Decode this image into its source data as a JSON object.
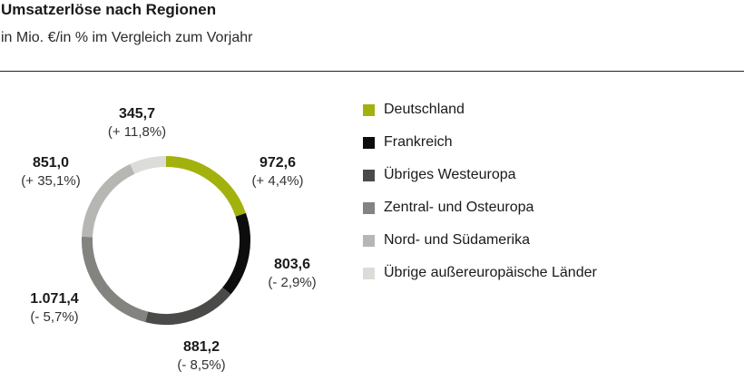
{
  "header": {
    "title": "Umsatzerlöse nach Regionen",
    "subtitle": "in Mio. €/in % im Vergleich zum Vorjahr"
  },
  "colors": {
    "deutschland": "#a3b10d",
    "frankreich": "#0d0d0d",
    "westeuropa": "#4a4a48",
    "osteuropa": "#838380",
    "amerika": "#b6b6b3",
    "ausser": "#dcdcd8"
  },
  "chart_data": {
    "type": "pie",
    "style": "donut",
    "categories": [
      "Deutschland",
      "Frankreich",
      "Übriges Westeuropa",
      "Zentral- und Osteuropa",
      "Nord- und Südamerika",
      "Übrige außereuropäische Länder"
    ],
    "values": [
      972.6,
      803.6,
      881.2,
      1071.4,
      851.0,
      345.7
    ],
    "value_labels": [
      "972,6",
      "803,6",
      "881,2",
      "1.071,4",
      "851,0",
      "345,7"
    ],
    "change_labels": [
      "(+ 4,4%)",
      "(- 2,9%)",
      "(- 8,5%)",
      "(- 5,7%)",
      "(+ 35,1%)",
      "(+ 11,8%)"
    ],
    "legend_placement": "right"
  }
}
